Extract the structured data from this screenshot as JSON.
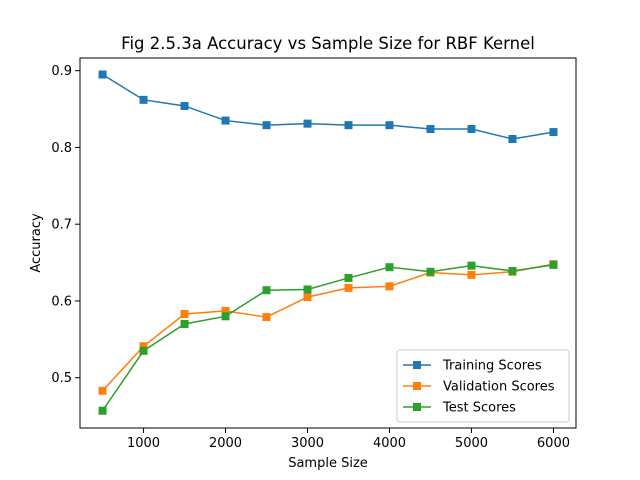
{
  "chart_data": {
    "type": "line",
    "title": "Fig 2.5.3a Accuracy vs Sample Size for RBF Kernel",
    "xlabel": "Sample Size",
    "ylabel": "Accuracy",
    "xlim": [
      225,
      6275
    ],
    "ylim": [
      0.4345,
      0.9165
    ],
    "xticks": [
      1000,
      2000,
      3000,
      4000,
      5000,
      6000
    ],
    "yticks": [
      0.5,
      0.6,
      0.7,
      0.8,
      0.9
    ],
    "x": [
      500,
      1000,
      1500,
      2000,
      2500,
      3000,
      3500,
      4000,
      4500,
      5000,
      5500,
      6000
    ],
    "legend_position": "lower-right",
    "grid": false,
    "series": [
      {
        "name": "Training Scores",
        "color": "#1f77b4",
        "marker": "square",
        "values": [
          0.895,
          0.862,
          0.854,
          0.835,
          0.829,
          0.831,
          0.829,
          0.829,
          0.824,
          0.824,
          0.811,
          0.82
        ]
      },
      {
        "name": "Validation Scores",
        "color": "#ff7f0e",
        "marker": "square",
        "values": [
          0.483,
          0.541,
          0.583,
          0.587,
          0.579,
          0.605,
          0.617,
          0.619,
          0.637,
          0.634,
          0.638,
          0.648
        ]
      },
      {
        "name": "Test Scores",
        "color": "#2ca02c",
        "marker": "square",
        "values": [
          0.457,
          0.535,
          0.57,
          0.58,
          0.614,
          0.615,
          0.63,
          0.644,
          0.638,
          0.646,
          0.639,
          0.647
        ]
      }
    ]
  }
}
